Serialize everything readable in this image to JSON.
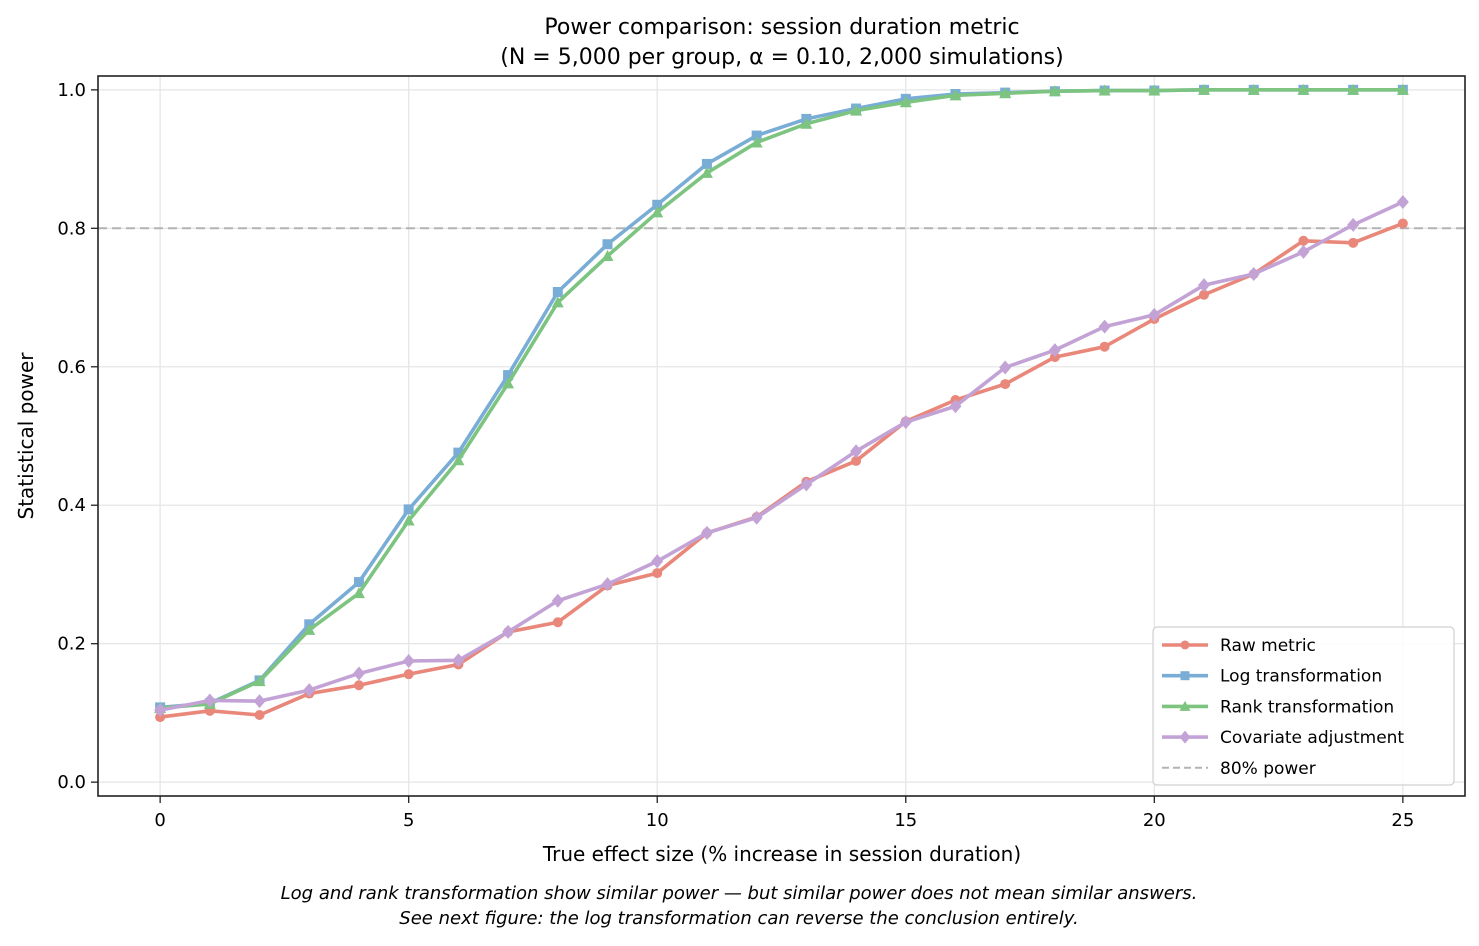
{
  "chart_data": {
    "type": "line",
    "title": "Power comparison: session duration metric",
    "subtitle": "(N = 5,000 per group, α = 0.10, 2,000 simulations)",
    "xlabel": "True effect size (% increase in session duration)",
    "ylabel": "Statistical power",
    "xlim": [
      -1.25,
      26.25
    ],
    "ylim": [
      -0.02,
      1.02
    ],
    "xticks": [
      0,
      5,
      10,
      15,
      20,
      25
    ],
    "xtick_labels": [
      "0",
      "5",
      "10",
      "15",
      "20",
      "25"
    ],
    "yticks": [
      0.0,
      0.2,
      0.4,
      0.6,
      0.8,
      1.0
    ],
    "ytick_labels": [
      "0.0",
      "0.2",
      "0.4",
      "0.6",
      "0.8",
      "1.0"
    ],
    "grid": true,
    "legend_position": "bottom-right",
    "x": [
      0,
      1,
      2,
      3,
      4,
      5,
      6,
      7,
      8,
      9,
      10,
      11,
      12,
      13,
      14,
      15,
      16,
      17,
      18,
      19,
      20,
      21,
      22,
      23,
      24,
      25
    ],
    "series": [
      {
        "name": "Raw metric",
        "color": "#e8877a",
        "marker": "circle",
        "values": [
          0.094,
          0.103,
          0.097,
          0.128,
          0.14,
          0.156,
          0.17,
          0.217,
          0.231,
          0.284,
          0.302,
          0.36,
          0.383,
          0.434,
          0.464,
          0.521,
          0.552,
          0.575,
          0.614,
          0.629,
          0.669,
          0.704,
          0.734,
          0.782,
          0.779,
          0.807
        ]
      },
      {
        "name": "Log transformation",
        "color": "#7aadd6",
        "marker": "square",
        "values": [
          0.108,
          0.114,
          0.147,
          0.228,
          0.289,
          0.394,
          0.476,
          0.588,
          0.708,
          0.777,
          0.834,
          0.893,
          0.934,
          0.958,
          0.973,
          0.987,
          0.994,
          0.996,
          0.998,
          0.999,
          0.999,
          1.0,
          1.0,
          1.0,
          1.0,
          1.0
        ]
      },
      {
        "name": "Rank transformation",
        "color": "#7cc47f",
        "marker": "triangle",
        "values": [
          0.107,
          0.113,
          0.146,
          0.22,
          0.273,
          0.378,
          0.465,
          0.576,
          0.693,
          0.76,
          0.823,
          0.88,
          0.924,
          0.951,
          0.97,
          0.982,
          0.992,
          0.995,
          0.998,
          0.999,
          0.999,
          1.0,
          1.0,
          1.0,
          1.0,
          1.0
        ]
      },
      {
        "name": "Covariate adjustment",
        "color": "#c3a3d6",
        "marker": "diamond",
        "values": [
          0.104,
          0.118,
          0.117,
          0.133,
          0.157,
          0.175,
          0.176,
          0.217,
          0.262,
          0.286,
          0.319,
          0.36,
          0.382,
          0.43,
          0.478,
          0.52,
          0.543,
          0.599,
          0.624,
          0.658,
          0.675,
          0.718,
          0.734,
          0.766,
          0.805,
          0.838
        ]
      }
    ],
    "reference_line": {
      "name": "80% power",
      "y": 0.8,
      "color": "#b3b3b3",
      "style": "dashed"
    },
    "caption": [
      "Log and rank transformation show similar power — but similar power does not mean similar answers.",
      "See next figure: the log transformation can reverse the conclusion entirely."
    ]
  }
}
